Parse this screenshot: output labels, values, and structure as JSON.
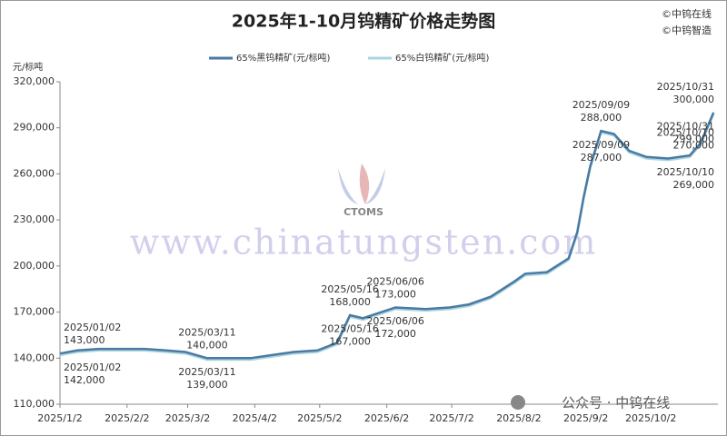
{
  "chart_data": {
    "type": "line",
    "title": "2025年1-10月钨精矿价格走势图",
    "y_unit": "元/标吨",
    "copyright": [
      "©中钨在线",
      "©中钨智造"
    ],
    "watermark": "www.chinatungsten.com",
    "logo_text": "CTOMS",
    "footer": "公众号 · 中钨在线",
    "x": [
      "2025-01-02",
      "2025-01-10",
      "2025-01-20",
      "2025-02-10",
      "2025-02-20",
      "2025-03-01",
      "2025-03-11",
      "2025-03-31",
      "2025-04-10",
      "2025-04-20",
      "2025-05-01",
      "2025-05-10",
      "2025-05-16",
      "2025-05-22",
      "2025-06-06",
      "2025-06-20",
      "2025-07-01",
      "2025-07-10",
      "2025-07-20",
      "2025-07-31",
      "2025-08-05",
      "2025-08-15",
      "2025-08-25",
      "2025-08-29",
      "2025-09-01",
      "2025-09-04",
      "2025-09-09",
      "2025-09-15",
      "2025-09-22",
      "2025-09-30",
      "2025-10-10",
      "2025-10-20",
      "2025-10-25",
      "2025-10-31"
    ],
    "series": [
      {
        "name": "65%黑钨精矿(元/标吨)",
        "color": "#4a7aa3",
        "values": [
          143000,
          145000,
          146000,
          146000,
          145000,
          144000,
          140000,
          140000,
          142000,
          144000,
          145000,
          150000,
          168000,
          166000,
          173000,
          172000,
          173000,
          175000,
          180000,
          190000,
          195000,
          196000,
          205000,
          222000,
          245000,
          265000,
          288000,
          286000,
          275000,
          271000,
          270000,
          272000,
          280000,
          300000
        ],
        "annotations": [
          {
            "label": "2025/01/02",
            "value": 143000,
            "value_label": "143,000"
          },
          {
            "label": "2025/03/11",
            "value": 140000,
            "value_label": "140,000"
          },
          {
            "label": "2025/05/16",
            "value": 168000,
            "value_label": "168,000"
          },
          {
            "label": "2025/06/06",
            "value": 173000,
            "value_label": "173,000"
          },
          {
            "label": "2025/09/09",
            "value": 288000,
            "value_label": "288,000"
          },
          {
            "label": "2025/10/10",
            "value": 270000,
            "value_label": "270,000"
          },
          {
            "label": "2025/10/31",
            "value": 300000,
            "value_label": "300,000"
          }
        ]
      },
      {
        "name": "65%白钨精矿(元/标吨)",
        "color": "#a9d4e0",
        "values": [
          142000,
          144000,
          145000,
          145000,
          144000,
          143000,
          139000,
          139000,
          141000,
          143000,
          144000,
          149000,
          167000,
          165000,
          172000,
          171000,
          172000,
          174000,
          179000,
          189000,
          194000,
          195000,
          204000,
          221000,
          244000,
          264000,
          287000,
          285000,
          274000,
          270000,
          269000,
          271000,
          279000,
          299000
        ],
        "annotations": [
          {
            "label": "2025/01/02",
            "value": 142000,
            "value_label": "142,000"
          },
          {
            "label": "2025/03/11",
            "value": 139000,
            "value_label": "139,000"
          },
          {
            "label": "2025/05/16",
            "value": 167000,
            "value_label": "167,000"
          },
          {
            "label": "2025/06/06",
            "value": 172000,
            "value_label": "172,000"
          },
          {
            "label": "2025/09/09",
            "value": 287000,
            "value_label": "287,000"
          },
          {
            "label": "2025/10/10",
            "value": 269000,
            "value_label": "269,000"
          },
          {
            "label": "2025/10/31",
            "value": 299000,
            "value_label": "299,000"
          }
        ]
      }
    ],
    "xlim": [
      "2025-01-02",
      "2025-11-02"
    ],
    "xticks": [
      {
        "value": "2025-01-02",
        "label": "2025/1/2"
      },
      {
        "value": "2025-02-02",
        "label": "2025/2/2"
      },
      {
        "value": "2025-03-02",
        "label": "2025/3/2"
      },
      {
        "value": "2025-04-02",
        "label": "2025/4/2"
      },
      {
        "value": "2025-05-02",
        "label": "2025/5/2"
      },
      {
        "value": "2025-06-02",
        "label": "2025/6/2"
      },
      {
        "value": "2025-07-02",
        "label": "2025/7/2"
      },
      {
        "value": "2025-08-02",
        "label": "2025/8/2"
      },
      {
        "value": "2025-09-02",
        "label": "2025/9/2"
      },
      {
        "value": "2025-10-02",
        "label": "2025/10/2"
      }
    ],
    "ylim": [
      110000,
      320000
    ],
    "yticks": [
      {
        "value": 110000,
        "label": "110,000"
      },
      {
        "value": 140000,
        "label": "140,000"
      },
      {
        "value": 170000,
        "label": "170,000"
      },
      {
        "value": 200000,
        "label": "200,000"
      },
      {
        "value": 230000,
        "label": "230,000"
      },
      {
        "value": 260000,
        "label": "260,000"
      },
      {
        "value": 290000,
        "label": "290,000"
      },
      {
        "value": 320000,
        "label": "320,000"
      }
    ],
    "grid": false
  }
}
